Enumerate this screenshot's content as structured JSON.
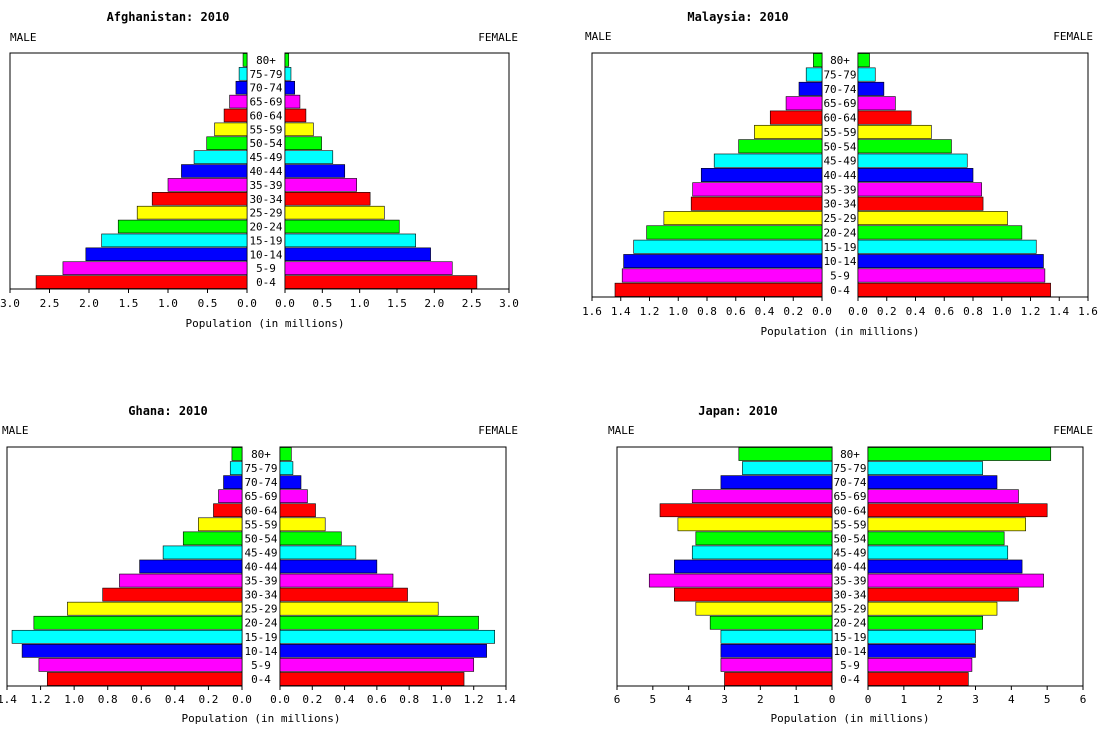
{
  "chart_data": [
    {
      "type": "bar",
      "title": "Afghanistan: 2010",
      "male_label": "MALE",
      "female_label": "FEMALE",
      "xlabel": "Population (in millions)",
      "xlim": [
        0,
        3.0
      ],
      "ticks": [
        "3.0",
        "2.5",
        "2.0",
        "1.5",
        "1.0",
        "0.5",
        "0.0",
        "0.0",
        "0.5",
        "1.0",
        "1.5",
        "2.0",
        "2.5",
        "3.0"
      ],
      "categories": [
        "80+",
        "75-79",
        "70-74",
        "65-69",
        "60-64",
        "55-59",
        "50-54",
        "45-49",
        "40-44",
        "35-39",
        "30-34",
        "25-29",
        "20-24",
        "15-19",
        "10-14",
        "5-9",
        "0-4"
      ],
      "series": [
        {
          "name": "MALE",
          "values": [
            0.05,
            0.1,
            0.14,
            0.22,
            0.29,
            0.41,
            0.51,
            0.67,
            0.83,
            1.0,
            1.2,
            1.39,
            1.63,
            1.84,
            2.04,
            2.33,
            2.67
          ]
        },
        {
          "name": "FEMALE",
          "values": [
            0.05,
            0.08,
            0.13,
            0.2,
            0.28,
            0.38,
            0.49,
            0.64,
            0.8,
            0.96,
            1.14,
            1.33,
            1.53,
            1.75,
            1.95,
            2.24,
            2.57
          ]
        }
      ]
    },
    {
      "type": "bar",
      "title": "Malaysia: 2010",
      "male_label": "MALE",
      "female_label": "FEMALE",
      "xlabel": "Population (in millions)",
      "xlim": [
        0,
        1.6
      ],
      "ticks": [
        "1.6",
        "1.4",
        "1.2",
        "1.0",
        "0.8",
        "0.6",
        "0.4",
        "0.2",
        "0.0",
        "0.0",
        "0.2",
        "0.4",
        "0.6",
        "0.8",
        "1.0",
        "1.2",
        "1.4",
        "1.6"
      ],
      "categories": [
        "80+",
        "75-79",
        "70-74",
        "65-69",
        "60-64",
        "55-59",
        "50-54",
        "45-49",
        "40-44",
        "35-39",
        "30-34",
        "25-29",
        "20-24",
        "15-19",
        "10-14",
        "5-9",
        "0-4"
      ],
      "series": [
        {
          "name": "MALE",
          "values": [
            0.06,
            0.11,
            0.16,
            0.25,
            0.36,
            0.47,
            0.58,
            0.75,
            0.84,
            0.9,
            0.91,
            1.1,
            1.22,
            1.31,
            1.38,
            1.39,
            1.44
          ]
        },
        {
          "name": "FEMALE",
          "values": [
            0.08,
            0.12,
            0.18,
            0.26,
            0.37,
            0.51,
            0.65,
            0.76,
            0.8,
            0.86,
            0.87,
            1.04,
            1.14,
            1.24,
            1.29,
            1.3,
            1.34
          ]
        }
      ]
    },
    {
      "type": "bar",
      "title": "Ghana: 2010",
      "male_label": "MALE",
      "female_label": "FEMALE",
      "xlabel": "Population (in millions)",
      "xlim": [
        0,
        1.4
      ],
      "ticks": [
        "1.4",
        "1.2",
        "1.0",
        "0.8",
        "0.6",
        "0.4",
        "0.2",
        "0.0",
        "0.0",
        "0.2",
        "0.4",
        "0.6",
        "0.8",
        "1.0",
        "1.2",
        "1.4"
      ],
      "categories": [
        "80+",
        "75-79",
        "70-74",
        "65-69",
        "60-64",
        "55-59",
        "50-54",
        "45-49",
        "40-44",
        "35-39",
        "30-34",
        "25-29",
        "20-24",
        "15-19",
        "10-14",
        "5-9",
        "0-4"
      ],
      "series": [
        {
          "name": "MALE",
          "values": [
            0.06,
            0.07,
            0.11,
            0.14,
            0.17,
            0.26,
            0.35,
            0.47,
            0.61,
            0.73,
            0.83,
            1.04,
            1.24,
            1.37,
            1.31,
            1.21,
            1.16
          ]
        },
        {
          "name": "FEMALE",
          "values": [
            0.07,
            0.08,
            0.13,
            0.17,
            0.22,
            0.28,
            0.38,
            0.47,
            0.6,
            0.7,
            0.79,
            0.98,
            1.23,
            1.33,
            1.28,
            1.2,
            1.14
          ]
        }
      ]
    },
    {
      "type": "bar",
      "title": "Japan: 2010",
      "male_label": "MALE",
      "female_label": "FEMALE",
      "xlabel": "Population (in millions)",
      "xlim": [
        0,
        6
      ],
      "ticks": [
        "6",
        "5",
        "4",
        "3",
        "2",
        "1",
        "0",
        "0",
        "1",
        "2",
        "3",
        "4",
        "5",
        "6"
      ],
      "categories": [
        "80+",
        "75-79",
        "70-74",
        "65-69",
        "60-64",
        "55-59",
        "50-54",
        "45-49",
        "40-44",
        "35-39",
        "30-34",
        "25-29",
        "20-24",
        "15-19",
        "10-14",
        "5-9",
        "0-4"
      ],
      "series": [
        {
          "name": "MALE",
          "values": [
            2.6,
            2.5,
            3.1,
            3.9,
            4.8,
            4.3,
            3.8,
            3.9,
            4.4,
            5.1,
            4.4,
            3.8,
            3.4,
            3.1,
            3.1,
            3.1,
            3.0
          ]
        },
        {
          "name": "FEMALE",
          "values": [
            5.1,
            3.2,
            3.6,
            4.2,
            5.0,
            4.4,
            3.8,
            3.9,
            4.3,
            4.9,
            4.2,
            3.6,
            3.2,
            3.0,
            3.0,
            2.9,
            2.8
          ]
        }
      ]
    }
  ],
  "age_colors": [
    "#00ff00",
    "#00ffff",
    "#0000ff",
    "#ff00ff",
    "#ff0000",
    "#ffff00"
  ]
}
